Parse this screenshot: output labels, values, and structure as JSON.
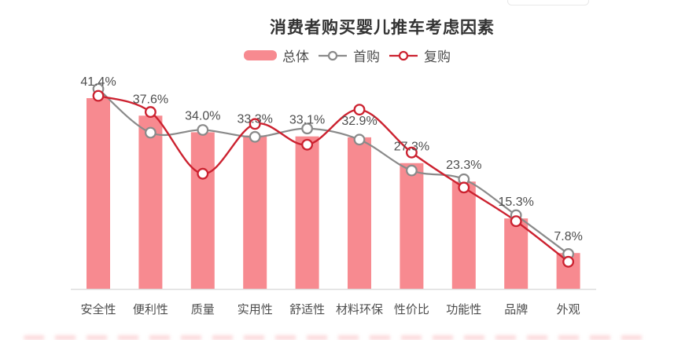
{
  "title": "消费者购买婴儿推车考虑因素",
  "colors": {
    "bar": "#F78A90",
    "line_first_purchase": "#8A8A8A",
    "line_repeat_purchase": "#CC2230",
    "axis": "#DDDDDD",
    "value_label": "#4D4D4D",
    "category_label": "#4D4D4D",
    "title": "#333333",
    "marker_fill": "#FFFFFF"
  },
  "legend": {
    "items": [
      {
        "label": "总体",
        "marker": "bar-swatch"
      },
      {
        "label": "首购",
        "marker": "line-circle-gray"
      },
      {
        "label": "复购",
        "marker": "line-circle-red"
      }
    ]
  },
  "chart_data": {
    "type": "bar",
    "subtype": "bar-with-line-overlays",
    "title": "消费者购买婴儿推车考虑因素",
    "xlabel": "",
    "ylabel": "",
    "ylim": [
      0,
      46
    ],
    "grid": false,
    "legend_position": "top-center",
    "categories": [
      "安全性",
      "便利性",
      "质量",
      "实用性",
      "舒适性",
      "材料环保",
      "性价比",
      "功能性",
      "品牌",
      "外观"
    ],
    "value_labels": [
      "41.4%",
      "37.6%",
      "34.0%",
      "33.3%",
      "33.1%",
      "32.9%",
      "27.3%",
      "23.3%",
      "15.3%",
      "7.8%"
    ],
    "value_labels_refer_to": "总体",
    "series": [
      {
        "name": "总体",
        "type": "bar",
        "values": [
          41.4,
          37.6,
          34.0,
          33.3,
          33.1,
          32.9,
          27.3,
          23.3,
          15.3,
          7.8
        ]
      },
      {
        "name": "首购",
        "type": "line",
        "values": [
          43.4,
          33.9,
          34.5,
          33.0,
          34.8,
          32.4,
          25.7,
          23.8,
          16.0,
          7.6
        ]
      },
      {
        "name": "复购",
        "type": "line",
        "values": [
          41.9,
          38.4,
          25.0,
          35.8,
          31.3,
          38.9,
          29.6,
          22.0,
          14.7,
          5.9
        ]
      }
    ]
  }
}
